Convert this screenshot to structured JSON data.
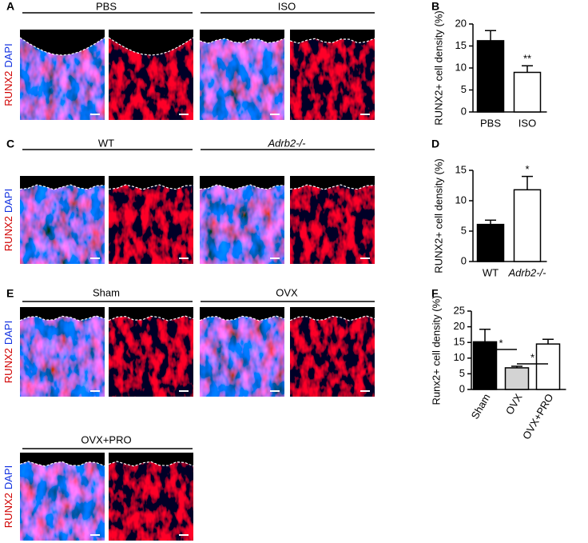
{
  "figure": {
    "panel_labels": [
      "A",
      "B",
      "C",
      "D",
      "E",
      "F"
    ],
    "stains": [
      "RUNX2",
      "DAPI"
    ],
    "image_groups": [
      [
        "PBS",
        "ISO"
      ],
      [
        "WT",
        "Adrb2-/-"
      ],
      [
        "Sham",
        "OVX"
      ],
      [
        "OVX+PRO"
      ]
    ]
  },
  "chart_data": [
    {
      "type": "bar",
      "ylabel": "RUNX2+ cell density (%)",
      "categories": [
        "PBS",
        "ISO"
      ],
      "values": [
        16.2,
        9
      ],
      "errors": [
        2.3,
        1.5
      ],
      "colors": [
        "#000000",
        "#ffffff"
      ],
      "ylim": [
        0,
        20
      ],
      "yticks": [
        0,
        5,
        10,
        15,
        20
      ],
      "annotations": [
        "**"
      ]
    },
    {
      "type": "bar",
      "ylabel": "RUNX2+ cell density (%)",
      "categories": [
        "WT",
        "Adrb2-/-"
      ],
      "values": [
        6.1,
        11.8
      ],
      "errors": [
        0.7,
        2.2
      ],
      "colors": [
        "#000000",
        "#ffffff"
      ],
      "ylim": [
        0,
        15
      ],
      "yticks": [
        0,
        5,
        10,
        15
      ],
      "annotations": [
        "*"
      ]
    },
    {
      "type": "bar",
      "ylabel": "Runx2+ cell density (%)",
      "categories": [
        "Sham",
        "OVX",
        "OVX+PRO"
      ],
      "values": [
        15.2,
        6.9,
        14.5
      ],
      "errors": [
        4,
        0.5,
        1.5
      ],
      "colors": [
        "#000000",
        "#d3d3d3",
        "#ffffff"
      ],
      "ylim": [
        0,
        25
      ],
      "yticks": [
        0,
        5,
        10,
        15,
        20,
        25
      ],
      "annotations": [
        "*",
        "*"
      ]
    }
  ]
}
